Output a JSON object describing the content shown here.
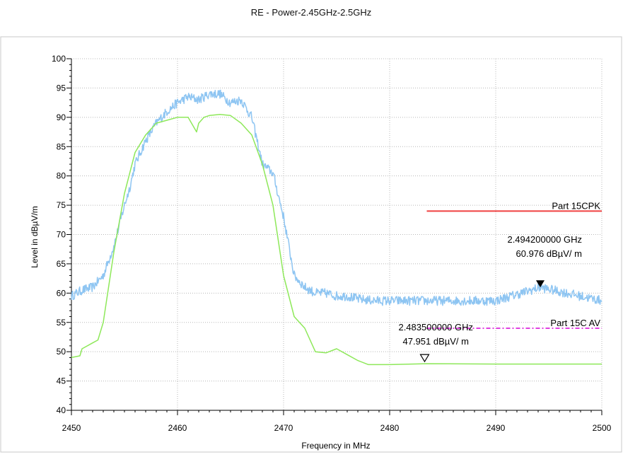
{
  "chart_data": {
    "type": "line",
    "title": "RE - Power-2.45GHz-2.5GHz",
    "xlabel": "Frequency in MHz",
    "ylabel": "Level in dBµV/m",
    "xlim": [
      2450,
      2500
    ],
    "ylim": [
      40,
      100
    ],
    "x_ticks": [
      2450,
      2460,
      2470,
      2480,
      2490,
      2500
    ],
    "y_ticks": [
      40,
      45,
      50,
      55,
      60,
      65,
      70,
      75,
      80,
      85,
      90,
      95,
      100
    ],
    "grid": true,
    "colors": {
      "peak": "#8ec5f2",
      "average": "#8ee85a",
      "limit_pk": "#f04040",
      "limit_av": "#e040e0",
      "marker": "#000000",
      "grid": "#b8b8b8",
      "frame": "#c8c8c8"
    },
    "series": [
      {
        "key": "peak",
        "x": [
          2450,
          2451,
          2452,
          2453,
          2454,
          2455,
          2455.5,
          2456,
          2456.5,
          2457,
          2458,
          2459,
          2460,
          2461,
          2462,
          2463,
          2464,
          2465,
          2466,
          2467,
          2467.5,
          2468,
          2469,
          2470,
          2470.5,
          2471,
          2472,
          2473,
          2474,
          2475,
          2476,
          2477,
          2478,
          2479,
          2480,
          2482,
          2485,
          2490,
          2494.2,
          2500
        ],
        "y": [
          59.5,
          60.5,
          61,
          63,
          68,
          75,
          78,
          82,
          84,
          86,
          89,
          91,
          92.5,
          93.5,
          93,
          94,
          94,
          92.5,
          93,
          90,
          86,
          82,
          80.5,
          73,
          68,
          63,
          61,
          60,
          60,
          59.5,
          59.5,
          59,
          58.8,
          58.7,
          58.7,
          58.7,
          58.7,
          58.7,
          60.976,
          58.7
        ]
      },
      {
        "key": "average",
        "x": [
          2450,
          2450.8,
          2451,
          2452,
          2452.5,
          2453,
          2454,
          2455,
          2456,
          2457,
          2458,
          2459,
          2460,
          2461,
          2461.8,
          2462,
          2462.5,
          2463,
          2464,
          2465,
          2466,
          2467,
          2468,
          2469,
          2470,
          2471,
          2472,
          2473,
          2474,
          2475,
          2476,
          2477,
          2478,
          2480,
          2483.5,
          2490,
          2500
        ],
        "y": [
          49,
          49.3,
          50.5,
          51.5,
          52,
          55,
          67,
          77,
          84,
          87,
          89,
          89.5,
          90,
          90,
          87.5,
          89,
          90,
          90.3,
          90.5,
          90.3,
          89,
          87,
          82,
          75,
          63,
          56,
          54,
          50,
          49.8,
          50.5,
          49.5,
          48.5,
          47.8,
          47.8,
          47.951,
          47.9,
          47.9
        ]
      }
    ],
    "limits": [
      {
        "name": "Part 15CPK",
        "x": [
          2483.5,
          2500
        ],
        "y": 74
      },
      {
        "name": "Part 15C AV",
        "x": [
          2483.5,
          2500
        ],
        "y": 54
      }
    ],
    "markers": [
      {
        "freq_text": "2.494200000 GHz",
        "level_text": "60.976 dBµV/ m",
        "x": 2494.2,
        "y": 60.976,
        "style": "filled"
      },
      {
        "freq_text": "2.483500000 GHz",
        "level_text": "47.951 dBµV/ m",
        "x": 2483.5,
        "y": 47.951,
        "style": "hollow"
      }
    ]
  }
}
